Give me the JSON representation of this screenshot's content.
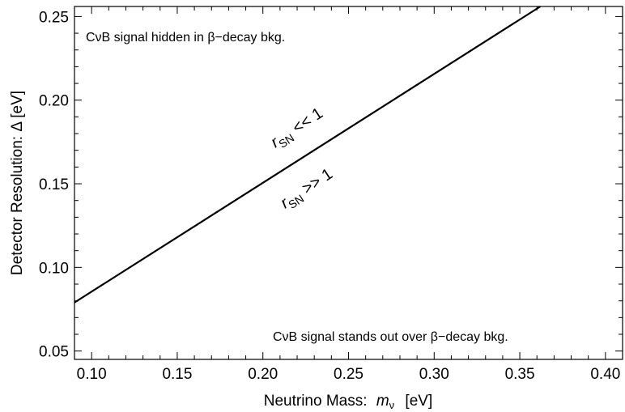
{
  "chart_data": {
    "type": "line",
    "xlabel": "Neutrino Mass:",
    "xlabel_symbol": "m",
    "xlabel_sub": "ν",
    "xlabel_unit": "[eV]",
    "ylabel": "Detector Resolution:  Δ  [eV]",
    "xlim": [
      0.09,
      0.41
    ],
    "ylim": [
      0.045,
      0.256
    ],
    "x_ticks": [
      0.1,
      0.15,
      0.2,
      0.25,
      0.3,
      0.35,
      0.4
    ],
    "x_tick_labels": [
      "0.10",
      "0.15",
      "0.20",
      "0.25",
      "0.30",
      "0.35",
      "0.40"
    ],
    "y_ticks": [
      0.05,
      0.1,
      0.15,
      0.2,
      0.25
    ],
    "y_tick_labels": [
      "0.05",
      "0.10",
      "0.15",
      "0.20",
      "0.25"
    ],
    "grid": false,
    "series": [
      {
        "x": [
          0.09,
          0.362
        ],
        "y": [
          0.079,
          0.256
        ],
        "color": "#000000"
      }
    ],
    "annotations": {
      "top_left": "CνB signal hidden in β−decay bkg.",
      "bottom_right": "CνB signal stands out over β−decay bkg.",
      "upper_region_r": "r",
      "upper_region_sub": "SN",
      "upper_region_rel": "<< 1",
      "lower_region_r": "r",
      "lower_region_sub": "SN",
      "lower_region_rel": ">> 1"
    }
  }
}
